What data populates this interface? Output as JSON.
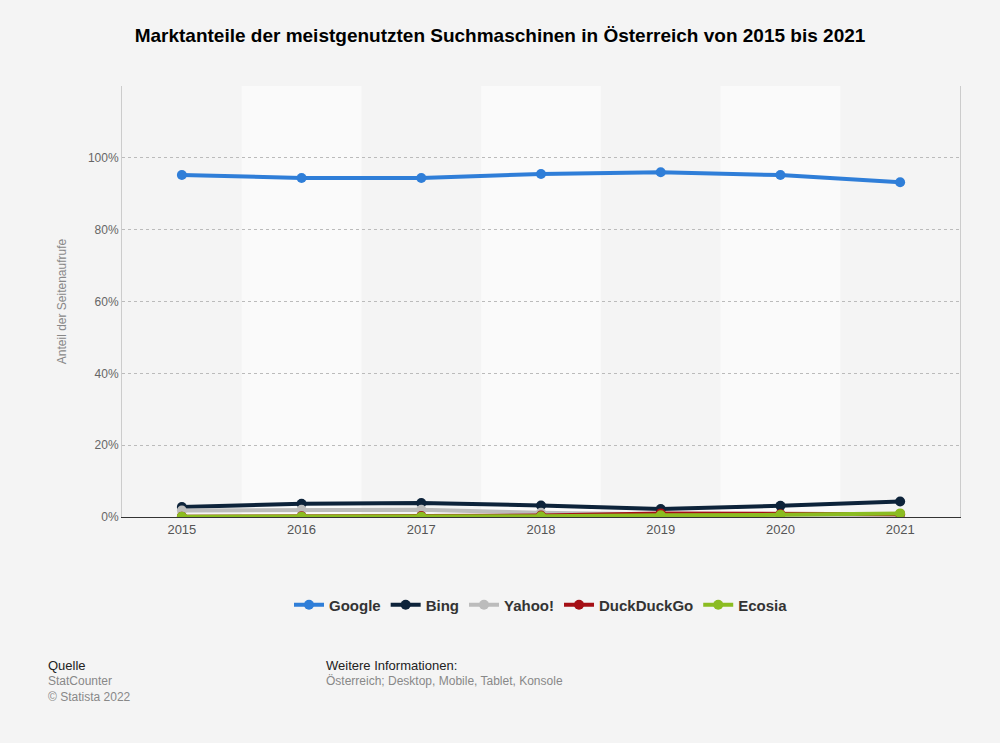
{
  "chart_data": {
    "type": "line",
    "title": "Marktanteile der meistgenutzten Suchmaschinen in Österreich von 2015 bis 2021",
    "y_label": "Anteil der Seitenaufrufe",
    "categories": [
      "2015",
      "2016",
      "2017",
      "2018",
      "2019",
      "2020",
      "2021"
    ],
    "series": [
      {
        "name": "Google",
        "color": "#2f7ed8",
        "values": [
          95.2,
          94.4,
          94.4,
          95.5,
          96.0,
          95.2,
          93.2
        ]
      },
      {
        "name": "Bing",
        "color": "#0d233a",
        "values": [
          2.8,
          3.7,
          3.9,
          3.2,
          2.2,
          3.1,
          4.3
        ]
      },
      {
        "name": "Yahoo!",
        "color": "#bcbcbc",
        "values": [
          1.8,
          2.0,
          2.0,
          1.2,
          0.7,
          0.6,
          0.6
        ]
      },
      {
        "name": "DuckDuckGo",
        "color": "#a50f15",
        "values": [
          0.1,
          0.2,
          0.3,
          0.4,
          1.0,
          0.8,
          0.8
        ]
      },
      {
        "name": "Ecosia",
        "color": "#8bbc21",
        "values": [
          0.1,
          0.1,
          0.1,
          0.2,
          0.5,
          0.6,
          1.0
        ]
      }
    ],
    "ylim": [
      0,
      120
    ],
    "yticks": [
      {
        "value": 0,
        "label": "0%"
      },
      {
        "value": 20,
        "label": "20%"
      },
      {
        "value": 40,
        "label": "40%"
      },
      {
        "value": 60,
        "label": "60%"
      },
      {
        "value": 80,
        "label": "80%"
      },
      {
        "value": 100,
        "label": "100%"
      }
    ],
    "grid": true,
    "legend": "bottom",
    "marker": "circle",
    "line_style": "solid",
    "annotations": [
      "Quelle",
      "StatCounter",
      "© Statista 2022",
      "Weitere Informationen:",
      "Österreich; Desktop, Mobile, Tablet, Konsole"
    ]
  }
}
